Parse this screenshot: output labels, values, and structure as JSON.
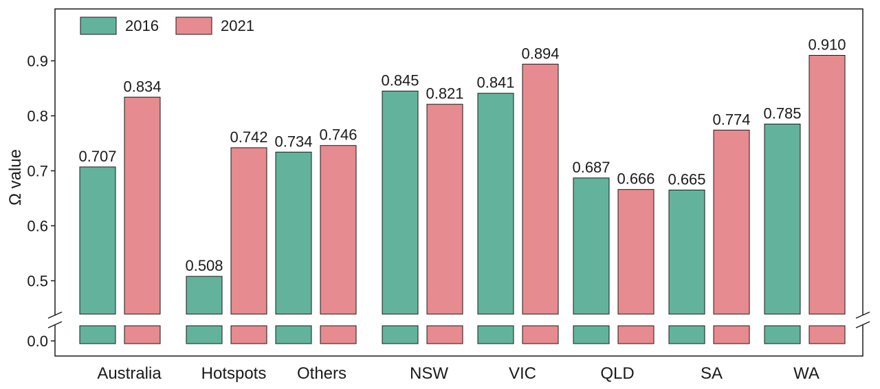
{
  "chart_data": {
    "type": "bar",
    "ylabel": "Ω value",
    "xlabel": "",
    "ylim_upper": [
      0.44,
      0.99
    ],
    "ylim_lower_tick": 0.0,
    "yticks": [
      0.0,
      0.5,
      0.6,
      0.7,
      0.8,
      0.9
    ],
    "categories": [
      "Australia",
      "Hotspots",
      "Others",
      "NSW",
      "VIC",
      "QLD",
      "SA",
      "WA"
    ],
    "series": [
      {
        "name": "2016",
        "color": "#63b39c",
        "values": [
          0.707,
          0.508,
          0.734,
          0.845,
          0.841,
          0.687,
          0.665,
          0.785
        ],
        "labels": [
          "0.707",
          "0.508",
          "0.734",
          "0.845",
          "0.841",
          "0.687",
          "0.665",
          "0.785"
        ]
      },
      {
        "name": "2021",
        "color": "#e68b8f",
        "values": [
          0.834,
          0.742,
          0.746,
          0.821,
          0.894,
          0.666,
          0.774,
          0.91
        ],
        "labels": [
          "0.834",
          "0.742",
          "0.746",
          "0.821",
          "0.894",
          "0.666",
          "0.774",
          "0.910"
        ]
      }
    ],
    "legend_position": "top-left",
    "axis_break": true,
    "grid": false
  }
}
